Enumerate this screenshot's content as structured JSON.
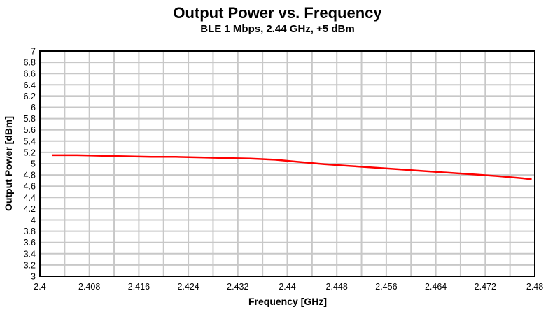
{
  "chart_data": {
    "type": "line",
    "title": "Output Power vs. Frequency",
    "subtitle": "BLE 1 Mbps, 2.44 GHz, +5 dBm",
    "xlabel": "Frequency [GHz]",
    "ylabel": "Output Power [dBm]",
    "xlim": [
      2.4,
      2.48
    ],
    "ylim": [
      3,
      7
    ],
    "x_tick_labels": [
      "2.4",
      "2.408",
      "2.416",
      "2.424",
      "2.432",
      "2.44",
      "2.448",
      "2.456",
      "2.464",
      "2.472",
      "2.48"
    ],
    "y_tick_labels": [
      "7",
      "6.8",
      "6.6",
      "6.4",
      "6.2",
      "6",
      "5.8",
      "5.6",
      "5.4",
      "5.2",
      "5",
      "4.8",
      "4.6",
      "4.4",
      "4.2",
      "4",
      "3.8",
      "3.6",
      "3.4",
      "3.2",
      "3"
    ],
    "x_grid_step": 0.004,
    "y_grid_step": 0.2,
    "grid": true,
    "legend": "none",
    "colors": {
      "line": "#ff0000",
      "grid": "#c8c8c8",
      "frame": "#000000",
      "background": "#ffffff",
      "text": "#000000"
    },
    "series": [
      {
        "name": "Output Power",
        "x": [
          2.402,
          2.406,
          2.41,
          2.414,
          2.418,
          2.422,
          2.426,
          2.43,
          2.434,
          2.438,
          2.442,
          2.446,
          2.45,
          2.454,
          2.458,
          2.462,
          2.466,
          2.47,
          2.474,
          2.478,
          2.4795
        ],
        "y": [
          5.15,
          5.15,
          5.14,
          5.13,
          5.12,
          5.12,
          5.11,
          5.1,
          5.09,
          5.07,
          5.03,
          4.99,
          4.96,
          4.93,
          4.9,
          4.87,
          4.84,
          4.81,
          4.78,
          4.74,
          4.72
        ]
      }
    ]
  }
}
